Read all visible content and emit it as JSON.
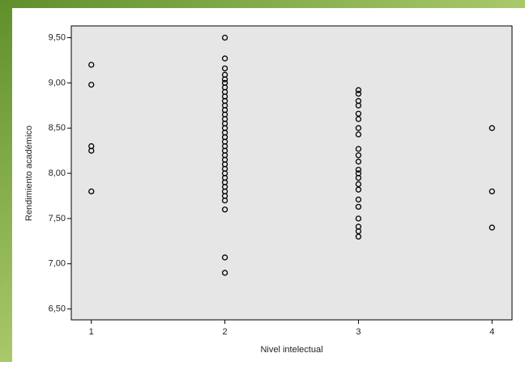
{
  "chart_data": {
    "type": "scatter",
    "x_label": "Nivel intelectual",
    "y_label": "Rendimiento académico",
    "x": [
      1,
      1,
      1,
      1,
      1,
      2,
      2,
      2,
      2,
      2,
      2,
      2,
      2,
      2,
      2,
      2,
      2,
      2,
      2,
      2,
      2,
      2,
      2,
      2,
      2,
      2,
      2,
      2,
      2,
      2,
      2,
      2,
      2,
      2,
      2,
      2,
      2,
      2,
      2,
      2,
      3,
      3,
      3,
      3,
      3,
      3,
      3,
      3,
      3,
      3,
      3,
      3,
      3,
      3,
      3,
      3,
      3,
      3,
      3,
      3,
      3,
      3,
      4,
      4,
      4
    ],
    "y": [
      9.2,
      8.98,
      8.3,
      8.25,
      7.8,
      9.5,
      9.27,
      9.16,
      9.09,
      9.04,
      9.0,
      8.95,
      8.9,
      8.85,
      8.8,
      8.75,
      8.7,
      8.65,
      8.6,
      8.55,
      8.5,
      8.45,
      8.4,
      8.35,
      8.3,
      8.25,
      8.2,
      8.15,
      8.1,
      8.05,
      8.0,
      7.95,
      7.9,
      7.85,
      7.8,
      7.75,
      7.7,
      7.6,
      7.07,
      6.9,
      8.92,
      8.88,
      8.8,
      8.75,
      8.66,
      8.6,
      8.5,
      8.43,
      8.27,
      8.2,
      8.13,
      8.04,
      8.0,
      7.95,
      7.88,
      7.82,
      7.71,
      7.63,
      7.5,
      7.41,
      7.36,
      7.3,
      8.5,
      7.8,
      7.4
    ],
    "color": "#000000",
    "xlim": [
      0.85,
      4.15
    ],
    "ylim": [
      6.38,
      9.63
    ],
    "xticks": [
      1,
      2,
      3,
      4
    ],
    "yticks": [
      {
        "value": 6.5,
        "label": "6,50"
      },
      {
        "value": 7,
        "label": "7,00"
      },
      {
        "value": 7.5,
        "label": "7,50"
      },
      {
        "value": 8,
        "label": "8,00"
      },
      {
        "value": 8.5,
        "label": "8,50"
      },
      {
        "value": 9,
        "label": "9,00"
      },
      {
        "value": 9.5,
        "label": "9,50"
      }
    ]
  }
}
